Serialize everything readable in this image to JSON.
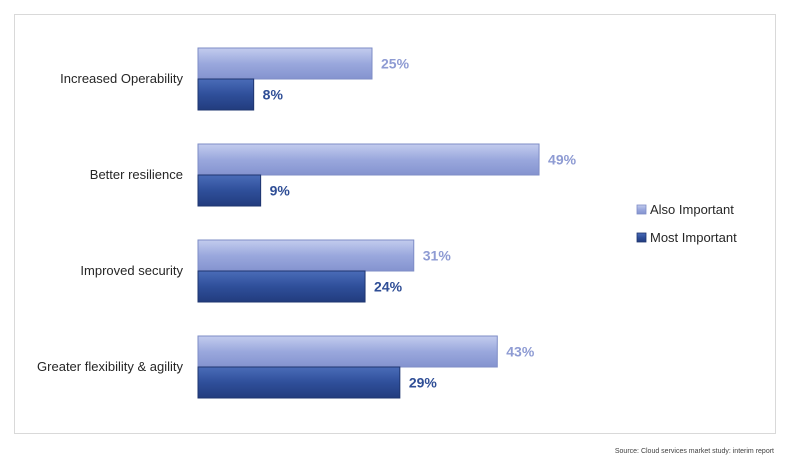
{
  "chart_data": {
    "type": "bar",
    "orientation": "horizontal",
    "categories": [
      "Increased Operability",
      "Better resilience",
      "Improved security",
      "Greater flexibility & agility"
    ],
    "series": [
      {
        "name": "Also Important",
        "values": [
          25,
          49,
          31,
          43
        ],
        "color": "#95A3D9",
        "label_color": "#8E9BD3"
      },
      {
        "name": "Most Important",
        "values": [
          8,
          9,
          24,
          29
        ],
        "color": "#2E4F98",
        "label_color": "#2F4E96"
      }
    ],
    "value_suffix": "%",
    "title": "",
    "xlabel": "",
    "ylabel": "",
    "xlim": [
      0,
      60
    ],
    "grid": false,
    "legend_position": "right"
  },
  "source": "Source: Cloud services market study: interim report"
}
